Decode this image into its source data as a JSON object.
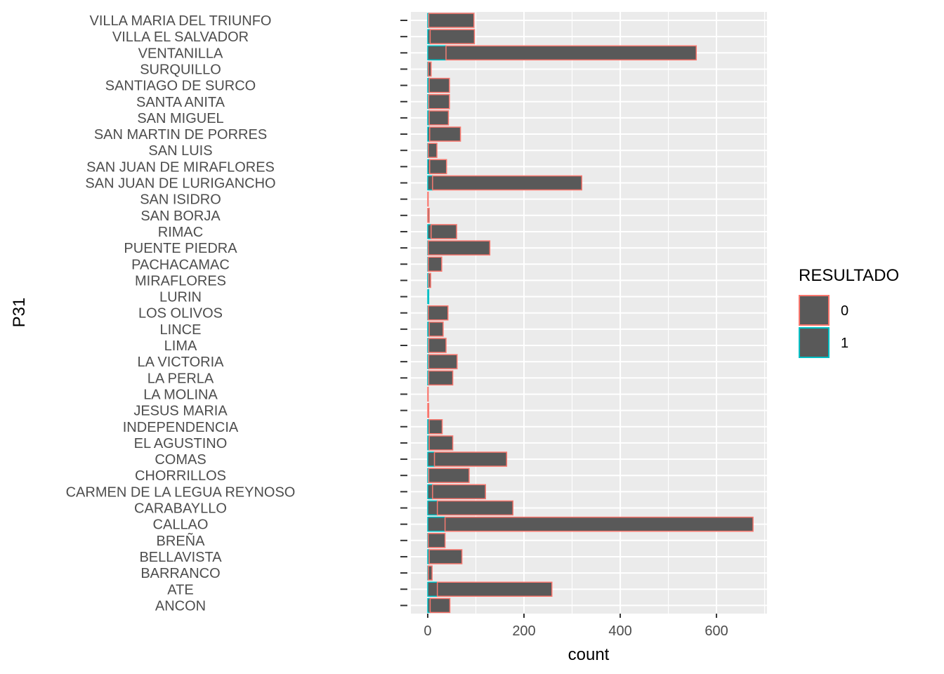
{
  "chart_data": {
    "type": "bar",
    "orientation": "horizontal",
    "stacked": true,
    "xlabel": "count",
    "ylabel": "P31",
    "xlim": [
      -35,
      705
    ],
    "xticks": [
      0,
      200,
      400,
      600
    ],
    "grid": true,
    "legend_position": "right",
    "legend_title": "RESULTADO",
    "categories": [
      "VILLA MARIA DEL TRIUNFO",
      "VILLA EL SALVADOR",
      "VENTANILLA",
      "SURQUILLO",
      "SANTIAGO DE SURCO",
      "SANTA ANITA",
      "SAN MIGUEL",
      "SAN MARTIN DE PORRES",
      "SAN LUIS",
      "SAN JUAN DE MIRAFLORES",
      "SAN JUAN DE LURIGANCHO",
      "SAN ISIDRO",
      "SAN BORJA",
      "RIMAC",
      "PUENTE PIEDRA",
      "PACHACAMAC",
      "MIRAFLORES",
      "LURIN",
      "LOS OLIVOS",
      "LINCE",
      "LIMA",
      "LA VICTORIA",
      "LA PERLA",
      "LA MOLINA",
      "JESUS MARIA",
      "INDEPENDENCIA",
      "EL AGUSTINO",
      "COMAS",
      "CHORRILLOS",
      "CARMEN DE LA LEGUA REYNOSO",
      "CARABAYLLO",
      "CALLAO",
      "BREÑA",
      "BELLAVISTA",
      "BARRANCO",
      "ATE",
      "ANCON"
    ],
    "series": [
      {
        "name": "0",
        "color": "#F8766D",
        "values": [
          94,
          92,
          520,
          6,
          42,
          43,
          40,
          64,
          18,
          35,
          310,
          1,
          3,
          53,
          128,
          28,
          4,
          0,
          41,
          29,
          36,
          59,
          50,
          1,
          2,
          27,
          49,
          150,
          84,
          110,
          157,
          640,
          35,
          68,
          8,
          238,
          41
        ]
      },
      {
        "name": "1",
        "color": "#00BFC4",
        "values": [
          2,
          5,
          38,
          1,
          3,
          2,
          3,
          4,
          1,
          4,
          10,
          0,
          0,
          7,
          1,
          1,
          2,
          2,
          1,
          3,
          2,
          2,
          2,
          0,
          0,
          3,
          3,
          14,
          2,
          10,
          20,
          36,
          1,
          3,
          1,
          20,
          5
        ]
      }
    ]
  },
  "colors": {
    "panel_background": "#EBEBEB",
    "grid_major": "#FFFFFF",
    "bar_fill": "#595959"
  }
}
